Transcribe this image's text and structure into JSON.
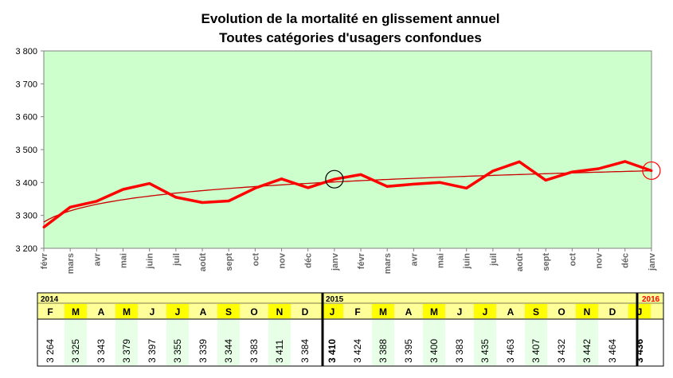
{
  "chart_data": {
    "type": "line",
    "title": "Evolution de la mortalité en glissement annuel",
    "subtitle": "Toutes catégories d'usagers confondues",
    "ylim": [
      3200,
      3800
    ],
    "yticks": [
      "3 200",
      "3 300",
      "3 400",
      "3 500",
      "3 600",
      "3 700",
      "3 800"
    ],
    "categories": [
      "févr",
      "mars",
      "avr",
      "mai",
      "juin",
      "juil",
      "août",
      "sept",
      "oct",
      "nov",
      "déc",
      "janv",
      "févr",
      "mars",
      "avr",
      "mai",
      "juin",
      "juil",
      "août",
      "sept",
      "oct",
      "nov",
      "déc",
      "janv"
    ],
    "series": [
      {
        "values": [
          3264,
          3325,
          3343,
          3379,
          3397,
          3355,
          3339,
          3344,
          3383,
          3411,
          3384,
          3410,
          3424,
          3388,
          3395,
          3400,
          3383,
          3435,
          3463,
          3407,
          3432,
          3442,
          3464,
          3436
        ],
        "color": "#ff0000"
      }
    ],
    "trend_color": "#cc0000",
    "plot_background": "#ccffcc",
    "grid": false,
    "highlighted_points": [
      {
        "category": "janv 2015",
        "color": "#000000"
      },
      {
        "category": "janv 2016",
        "color": "#ff0000"
      }
    ]
  },
  "table": {
    "years": [
      {
        "label": "2014",
        "color": "#000000"
      },
      {
        "label": "2015",
        "color": "#000000"
      },
      {
        "label": "2016",
        "color": "#ff0000"
      }
    ],
    "header_background": "#ffff99",
    "highlight_background": "#ffff00",
    "alt_background": "#e6ffe6",
    "months": [
      "F",
      "M",
      "A",
      "M",
      "J",
      "J",
      "A",
      "S",
      "O",
      "N",
      "D",
      "J",
      "F",
      "M",
      "A",
      "M",
      "J",
      "J",
      "A",
      "S",
      "O",
      "N",
      "D",
      "J"
    ],
    "values": [
      "3 264",
      "3 325",
      "3 343",
      "3 379",
      "3 397",
      "3 355",
      "3 339",
      "3 344",
      "3 383",
      "3 411",
      "3 384",
      "3 410",
      "3 424",
      "3 388",
      "3 395",
      "3 400",
      "3 383",
      "3 435",
      "3 463",
      "3 407",
      "3 432",
      "3 442",
      "3 464",
      "3 436"
    ]
  }
}
